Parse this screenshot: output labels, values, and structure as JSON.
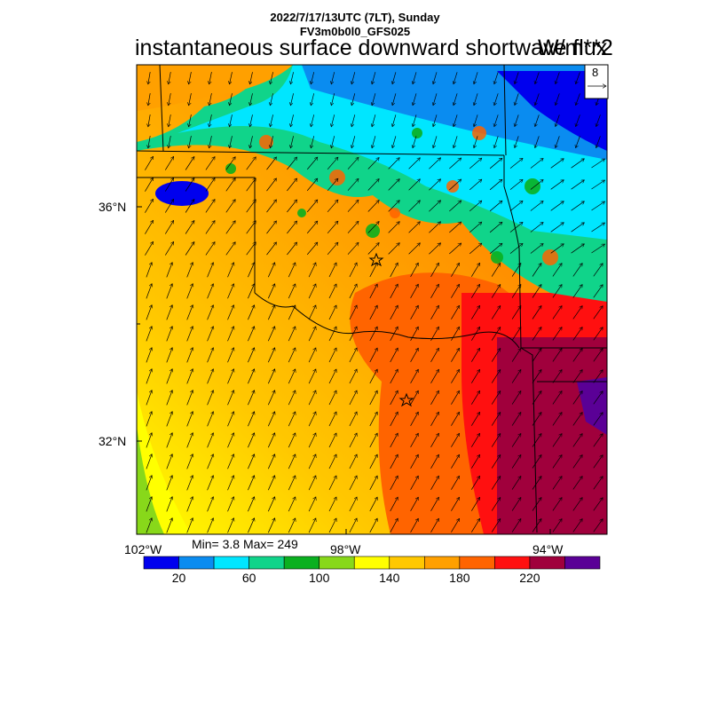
{
  "header": {
    "datetime": "2022/7/17/13UTC (7LT), Sunday",
    "model": "FV3m0b0l0_GFS025",
    "title": "instantaneous surface downward shortwave flux",
    "units": "W/m**2"
  },
  "vector_ref": {
    "label": "8"
  },
  "axis": {
    "lat_labels": [
      "36°N",
      "32°N"
    ],
    "lon_labels": [
      "102°W",
      "98°W",
      "94°W"
    ]
  },
  "stats": {
    "text": "Min= 3.8 Max= 249"
  },
  "colorbar": {
    "colors": [
      "#0000ee",
      "#0a8cf0",
      "#00e6ff",
      "#10d48a",
      "#0ab020",
      "#88d81a",
      "#ffff00",
      "#ffc800",
      "#ffa000",
      "#ff6400",
      "#ff1010",
      "#a0003c",
      "#5a0096"
    ],
    "labels": [
      "20",
      "60",
      "100",
      "140",
      "180",
      "220"
    ]
  },
  "markers": [
    {
      "name": "station-star-1"
    },
    {
      "name": "station-star-2"
    }
  ]
}
